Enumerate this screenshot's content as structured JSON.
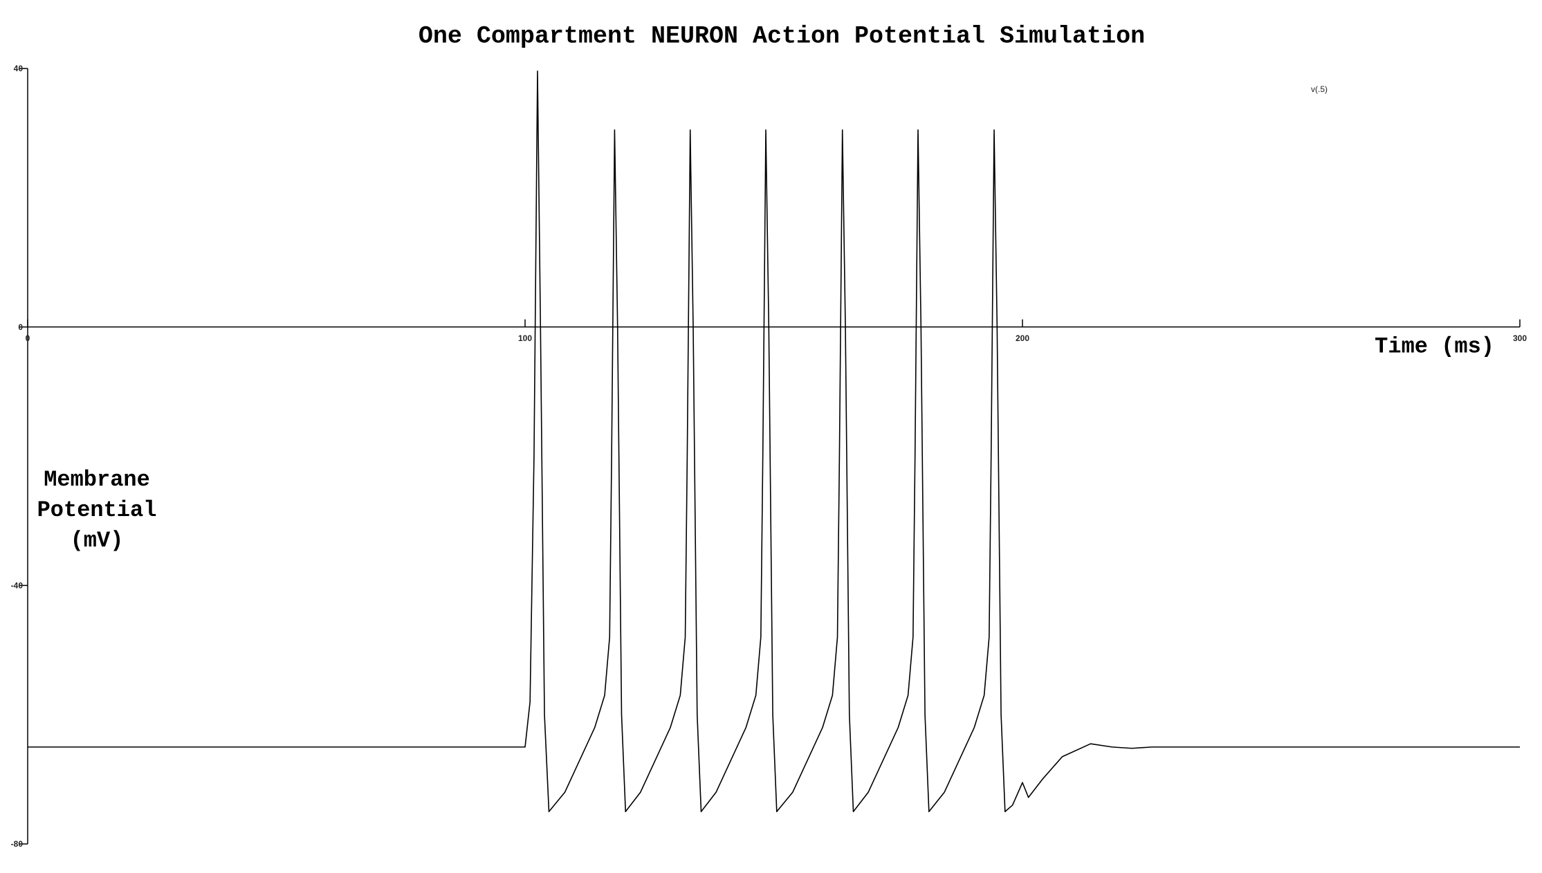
{
  "chart_data": {
    "type": "line",
    "title": "One Compartment NEURON Action Potential Simulation",
    "x_label": "Time (ms)",
    "y_label": "Membrane Potential (mV)",
    "xlim": [
      0,
      300
    ],
    "xticks": [
      0,
      100,
      200,
      300
    ],
    "ylim": [
      -80,
      40
    ],
    "yticks": [
      40,
      0,
      -40,
      -80
    ],
    "x": [
      0,
      100,
      101,
      101.8,
      102.5,
      103.1,
      103.9,
      104.8,
      108,
      111,
      114,
      116,
      117,
      117.4,
      118,
      118.6,
      119.4,
      120.2,
      123.2,
      126.2,
      129.2,
      131.2,
      132.2,
      132.6,
      133.2,
      133.8,
      134.6,
      135.4,
      138.4,
      141.4,
      144.4,
      146.4,
      147.4,
      147.8,
      148.4,
      149,
      149.8,
      150.6,
      153.8,
      156.8,
      159.8,
      161.8,
      162.8,
      163.2,
      163.8,
      164.4,
      165.2,
      166,
      169,
      172,
      175,
      177,
      178,
      178.4,
      179,
      179.6,
      180.4,
      181.2,
      184.3,
      187.3,
      190.3,
      192.3,
      193.3,
      193.7,
      194.3,
      194.9,
      195.7,
      196.5,
      198,
      200,
      201.2,
      204,
      208,
      213.7,
      218,
      222,
      226,
      300
    ],
    "series": [
      {
        "name": "v(.5)",
        "color": "#000000",
        "values": [
          -65,
          -65,
          -58,
          -20,
          39.6,
          0,
          -60,
          -75,
          -72,
          -67,
          -62,
          -57,
          -48,
          -20,
          30.5,
          0,
          -60,
          -75,
          -72,
          -67,
          -62,
          -57,
          -48,
          -20,
          30.5,
          0,
          -60,
          -75,
          -72,
          -67,
          -62,
          -57,
          -48,
          -20,
          30.5,
          0,
          -60,
          -75,
          -72,
          -67,
          -62,
          -57,
          -48,
          -20,
          30.5,
          0,
          -60,
          -75,
          -72,
          -67,
          -62,
          -57,
          -48,
          -20,
          30.5,
          0,
          -60,
          -75,
          -72,
          -67,
          -62,
          -57,
          -48,
          -20,
          30.5,
          0,
          -60,
          -75,
          -74,
          -70.5,
          -72.8,
          -70,
          -66.5,
          -64.5,
          -65,
          -65.2,
          -65,
          -65
        ]
      }
    ]
  }
}
